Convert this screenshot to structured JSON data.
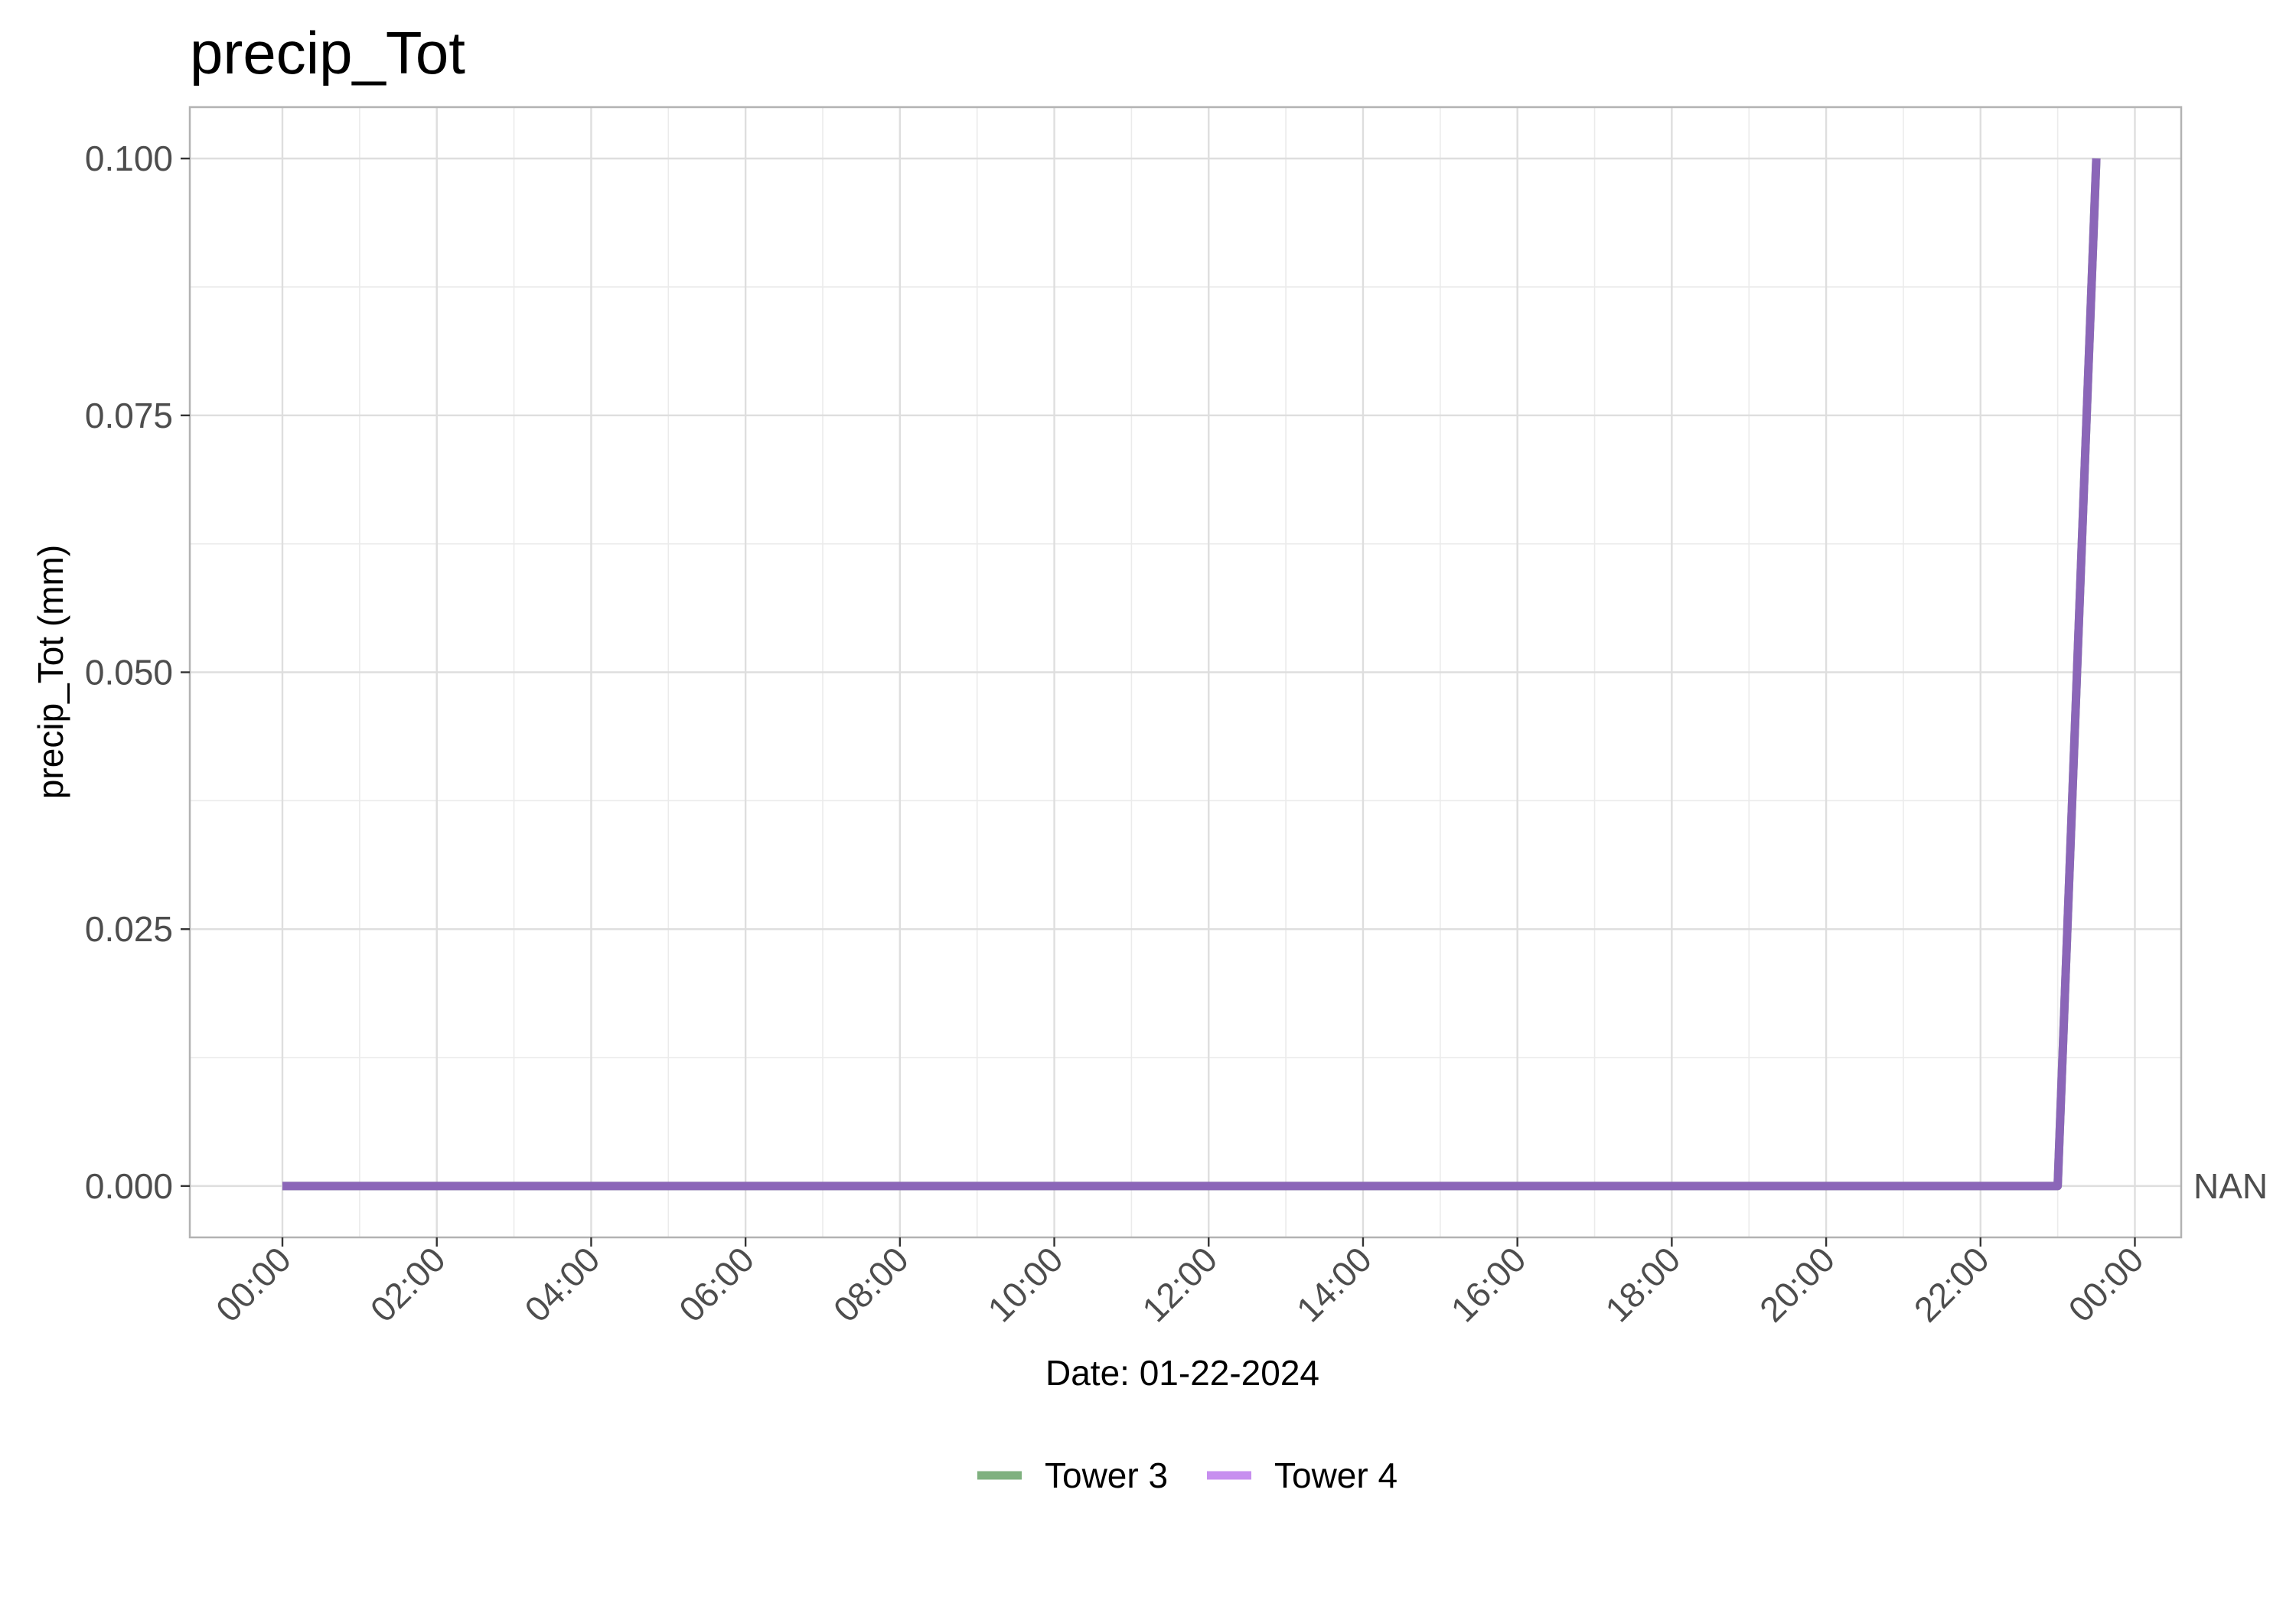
{
  "chart_data": {
    "type": "line",
    "title": "precip_Tot",
    "xlabel": "Date: 01-22-2024",
    "ylabel": "precip_Tot (mm)",
    "x_tick_labels": [
      "00:00",
      "02:00",
      "04:00",
      "06:00",
      "08:00",
      "10:00",
      "12:00",
      "14:00",
      "16:00",
      "18:00",
      "20:00",
      "22:00",
      "00:00"
    ],
    "x_tick_hours": [
      0,
      2,
      4,
      6,
      8,
      10,
      12,
      14,
      16,
      18,
      20,
      22,
      24
    ],
    "xlim_hours": [
      -1.2,
      24.6
    ],
    "y_tick_labels": [
      "0.000",
      "0.025",
      "0.050",
      "0.075",
      "0.100"
    ],
    "y_tick_values": [
      0,
      0.025,
      0.05,
      0.075,
      0.1
    ],
    "ylim": [
      -0.005,
      0.105
    ],
    "grid": true,
    "legend_position": "bottom",
    "end_label": "NAN",
    "series": [
      {
        "name": "Tower 3",
        "color": "#7fb17f",
        "x_hours": [
          0,
          23,
          23.5
        ],
        "values": [
          0,
          0,
          0.1
        ]
      },
      {
        "name": "Tower 4",
        "color": "#8b66b8",
        "legend_color": "#c78fef",
        "x_hours": [
          0,
          23,
          23.5
        ],
        "values": [
          0,
          0,
          0.1
        ]
      }
    ]
  }
}
